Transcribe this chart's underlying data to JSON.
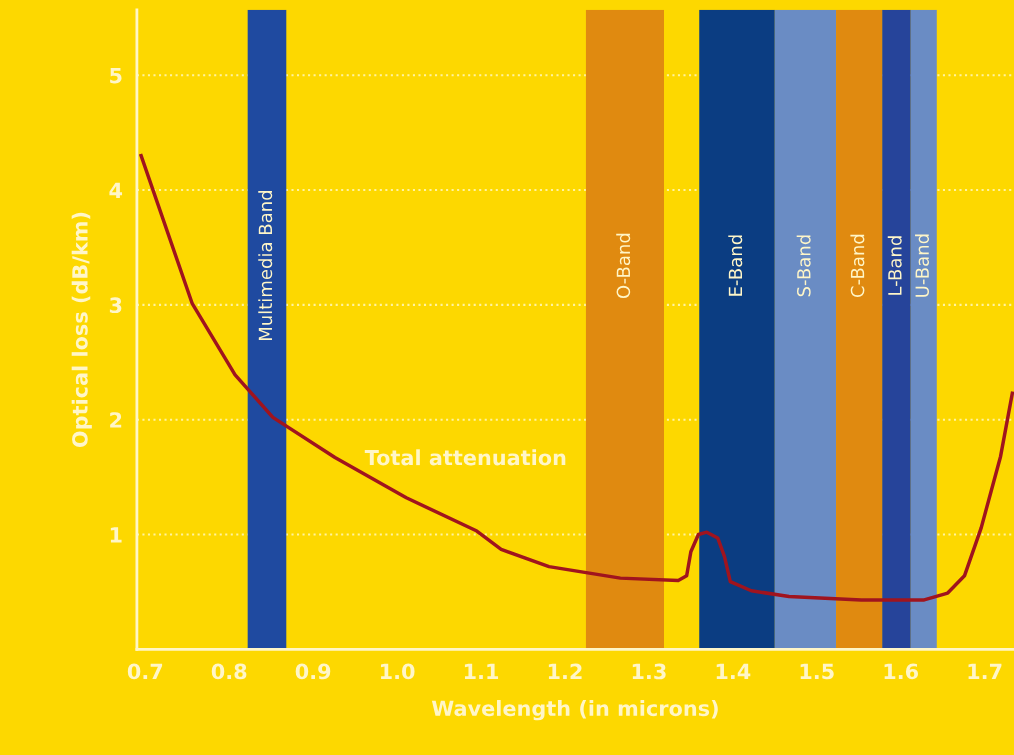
{
  "chart_data": {
    "type": "line",
    "xlabel": "Wavelength (in microns)",
    "ylabel": "Optical loss (dB/km)",
    "x": [
      0.695,
      0.756,
      0.807,
      0.852,
      0.926,
      1.011,
      1.095,
      1.124,
      1.181,
      1.266,
      1.335,
      1.345,
      1.35,
      1.359,
      1.369,
      1.382,
      1.39,
      1.397,
      1.422,
      1.467,
      1.553,
      1.628,
      1.656,
      1.676,
      1.696,
      1.719,
      1.733
    ],
    "series": [
      {
        "color": "#a0141e",
        "values": [
          4.3,
          3.01,
          2.39,
          2.02,
          1.67,
          1.32,
          1.03,
          0.87,
          0.72,
          0.62,
          0.6,
          0.64,
          0.85,
          1.0,
          1.02,
          0.97,
          0.81,
          0.59,
          0.51,
          0.46,
          0.43,
          0.43,
          0.49,
          0.64,
          1.06,
          1.68,
          2.23
        ]
      }
    ],
    "xlim": [
      0.69,
      1.735
    ],
    "ylim": [
      0,
      5.57
    ],
    "xticks": [
      0.7,
      0.8,
      0.9,
      {
        "value": 1.0,
        "label": "1.0"
      },
      1.1,
      1.2,
      1.3,
      1.4,
      1.5,
      1.6,
      1.7
    ],
    "yticks": [
      1,
      2,
      3,
      4,
      5
    ],
    "grid": "y",
    "marker": "none",
    "line_style": "solid",
    "bands": [
      {
        "axis": "x",
        "from": 0.822,
        "to": 0.868,
        "label": "Multimedia Band",
        "color": "#1f4aa0"
      },
      {
        "axis": "x",
        "from": 1.225,
        "to": 1.318,
        "label": "O-Band",
        "color": "#e08a10"
      },
      {
        "axis": "x",
        "from": 1.36,
        "to": 1.45,
        "label": "E-Band",
        "color": "#0b3d82"
      },
      {
        "axis": "x",
        "from": 1.45,
        "to": 1.523,
        "label": "S-Band",
        "color": "#6a8cc4"
      },
      {
        "axis": "x",
        "from": 1.523,
        "to": 1.578,
        "label": "C-Band",
        "color": "#e08a10"
      },
      {
        "axis": "x",
        "from": 1.578,
        "to": 1.612,
        "label": "L-Band",
        "color": "#26449a"
      },
      {
        "axis": "x",
        "from": 1.612,
        "to": 1.643,
        "label": "U-Band",
        "color": "#6a8cc4"
      }
    ],
    "annotations": [
      "Total attenuation"
    ]
  }
}
